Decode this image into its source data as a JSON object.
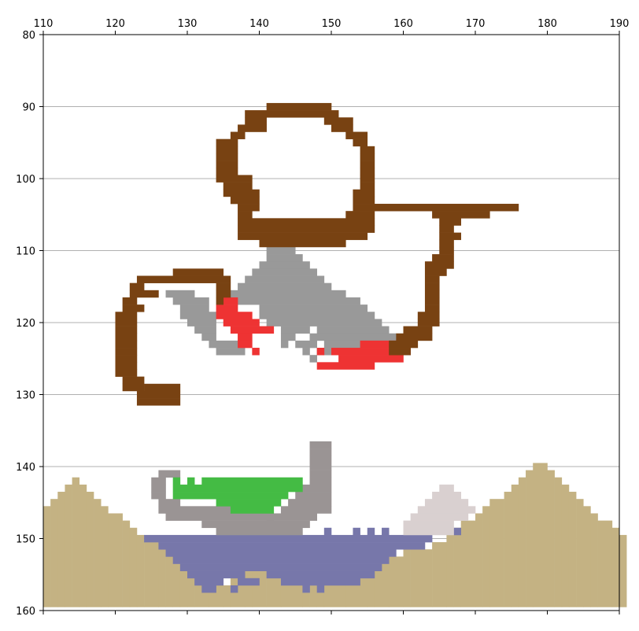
{
  "scene": {
    "description_type": "pixel-art map rendered on a plot grid",
    "x_ticks": [
      "110",
      "120",
      "130",
      "140",
      "150",
      "160",
      "170",
      "180",
      "190"
    ],
    "y_ticks": [
      "80",
      "90",
      "100",
      "110",
      "120",
      "130",
      "140",
      "150",
      "160"
    ],
    "xlim": [
      110,
      190
    ],
    "ylim": [
      80,
      160
    ],
    "grid": "horizontal",
    "colors": {
      "rope": "#784212",
      "rock": "#999999",
      "fire": "#ee3333",
      "grass": "#44bb44",
      "water": "#7777aa",
      "sand": "#c4b283",
      "snow": "#d9d0d0",
      "boat": "#9a9494"
    }
  }
}
